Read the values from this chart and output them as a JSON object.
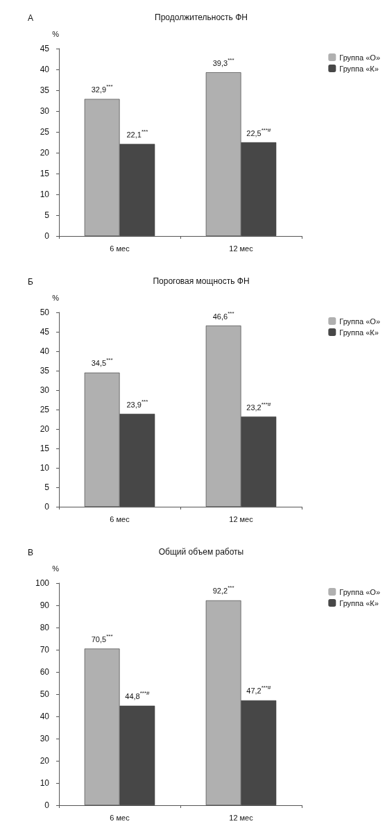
{
  "chart_data": [
    {
      "type": "bar",
      "title": "Продолжительность ФН",
      "ylabel": "%",
      "annotations": [
        "А"
      ],
      "categories": [
        "6 мес",
        "12 мес"
      ],
      "series": [
        {
          "name": "Группа «О»",
          "color": "#b0b0b0",
          "values": [
            32.9,
            39.3
          ],
          "value_labels": [
            "32,9$^{***}$",
            "39,3$^{***}$"
          ]
        },
        {
          "name": "Группа «К»",
          "color": "#474747",
          "values": [
            22.1,
            22.5
          ],
          "value_labels": [
            "22,1$^{***}$",
            "22,5$^{***#}$"
          ]
        }
      ],
      "ylim": [
        0,
        45
      ],
      "yticks": [
        0,
        5,
        10,
        15,
        20,
        25,
        30,
        35,
        40,
        45
      ],
      "grid": false,
      "legend": "top right"
    },
    {
      "type": "bar",
      "title": "Пороговая мощность ФН",
      "ylabel": "%",
      "annotations": [
        "Б"
      ],
      "categories": [
        "6 мес",
        "12 мес"
      ],
      "series": [
        {
          "name": "Группа «О»",
          "color": "#b0b0b0",
          "values": [
            34.5,
            46.6
          ],
          "value_labels": [
            "34,5$^{***}$",
            "46,6$^{***}$"
          ]
        },
        {
          "name": "Группа «К»",
          "color": "#474747",
          "values": [
            23.9,
            23.2
          ],
          "value_labels": [
            "23,9$^{***}$",
            "23,2$^{***#}$"
          ]
        }
      ],
      "ylim": [
        0,
        50
      ],
      "yticks": [
        0,
        5,
        10,
        15,
        20,
        25,
        30,
        35,
        40,
        45,
        50
      ],
      "grid": false,
      "legend": "top right"
    },
    {
      "type": "bar",
      "title": "Общий объем работы",
      "ylabel": "%",
      "annotations": [
        "В"
      ],
      "categories": [
        "6 мес",
        "12 мес"
      ],
      "series": [
        {
          "name": "Группа «О»",
          "color": "#b0b0b0",
          "values": [
            70.5,
            92.2
          ],
          "value_labels": [
            "70,5$^{***}$",
            "92,2$^{***}$"
          ]
        },
        {
          "name": "Группа «К»",
          "color": "#474747",
          "values": [
            44.8,
            47.2
          ],
          "value_labels": [
            "44,8$^{***#}$",
            "47,2$^{***#}$"
          ]
        }
      ],
      "ylim": [
        0,
        100
      ],
      "yticks": [
        0,
        10,
        20,
        30,
        40,
        50,
        60,
        70,
        80,
        90,
        100
      ],
      "grid": false,
      "legend": "top right"
    }
  ]
}
